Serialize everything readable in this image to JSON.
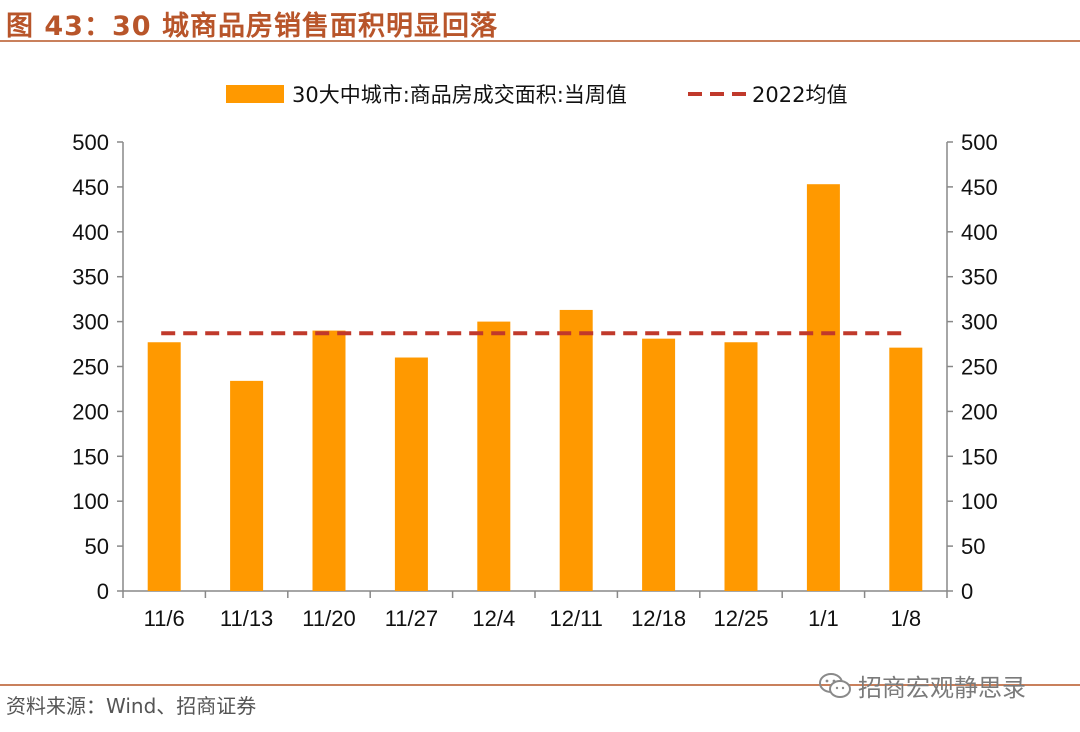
{
  "figure": {
    "title": "图 43：30 城商品房销售面积明显回落",
    "source": "资料来源：Wind、招商证券",
    "watermark": "招商宏观静思录",
    "watermark_icon": "wechat-icon"
  },
  "colors": {
    "title": "#b8552a",
    "bar": "#ff9900",
    "avg_line": "#c0392b",
    "axis": "#888888",
    "rule": "#c9805c"
  },
  "chart_data": {
    "type": "bar",
    "title": "",
    "categories": [
      "11/6",
      "11/13",
      "11/20",
      "11/27",
      "12/4",
      "12/11",
      "12/18",
      "12/25",
      "1/1",
      "1/8"
    ],
    "series": [
      {
        "name": "30大中城市:商品房成交面积:当周值",
        "type": "bar",
        "values": [
          277,
          234,
          290,
          260,
          300,
          313,
          281,
          277,
          453,
          271
        ]
      },
      {
        "name": "2022均值",
        "type": "line",
        "style": "dashed",
        "values": [
          287,
          287,
          287,
          287,
          287,
          287,
          287,
          287,
          287,
          287
        ]
      }
    ],
    "ylim": [
      0,
      500
    ],
    "yticks": [
      0,
      50,
      100,
      150,
      200,
      250,
      300,
      350,
      400,
      450,
      500
    ],
    "y2ticks": [
      0,
      50,
      100,
      150,
      200,
      250,
      300,
      350,
      400,
      450,
      500
    ],
    "xlabel": "",
    "ylabel": "",
    "legend_position": "top-center",
    "grid": false
  }
}
